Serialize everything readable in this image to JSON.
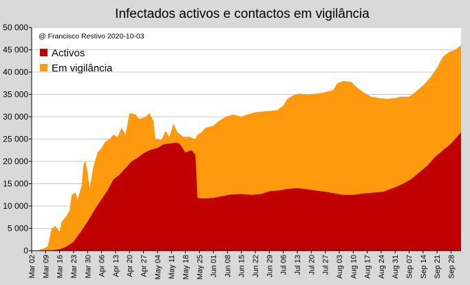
{
  "chart_data": {
    "type": "area",
    "stacked": true,
    "title": "Infectados activos e contactos em vigilância",
    "annotation": "@ Francisco Restivo 2020-10-03",
    "legend_position": "top-left",
    "grid": true,
    "ylim": [
      0,
      50000
    ],
    "yticks": [
      0,
      5000,
      10000,
      15000,
      20000,
      25000,
      30000,
      35000,
      40000,
      45000,
      50000
    ],
    "ytick_labels": [
      "0",
      "5 000",
      "10 000",
      "15 000",
      "20 000",
      "25 000",
      "30 000",
      "35 000",
      "40 000",
      "45 000",
      "50 000"
    ],
    "xlim": [
      "2020-03-02",
      "2020-10-03"
    ],
    "xticks": [
      "2020-03-02",
      "2020-03-09",
      "2020-03-16",
      "2020-03-23",
      "2020-03-30",
      "2020-04-06",
      "2020-04-13",
      "2020-04-20",
      "2020-04-27",
      "2020-05-04",
      "2020-05-11",
      "2020-05-18",
      "2020-05-25",
      "2020-06-01",
      "2020-06-08",
      "2020-06-15",
      "2020-06-22",
      "2020-06-29",
      "2020-07-06",
      "2020-07-13",
      "2020-07-20",
      "2020-07-27",
      "2020-08-03",
      "2020-08-10",
      "2020-08-17",
      "2020-08-24",
      "2020-08-31",
      "2020-09-07",
      "2020-09-14",
      "2020-09-21",
      "2020-09-28"
    ],
    "xtick_labels": [
      "Mar 02",
      "Mar 09",
      "Mar 16",
      "Mar 23",
      "Mar 30",
      "Apr 06",
      "Apr 13",
      "Apr 20",
      "Apr 27",
      "May 04",
      "May 11",
      "May 18",
      "May 25",
      "Jun 01",
      "Jun 08",
      "Jun 15",
      "Jun 22",
      "Jun 29",
      "Jul 06",
      "Jul 13",
      "Jul 20",
      "Jul 27",
      "Aug 03",
      "Aug 10",
      "Aug 17",
      "Aug 24",
      "Aug 31",
      "Sep 07",
      "Sep 14",
      "Sep 21",
      "Sep 28"
    ],
    "series": [
      {
        "name": "Activos",
        "color": "#c00000",
        "points": [
          [
            "2020-03-05",
            0
          ],
          [
            "2020-03-09",
            30
          ],
          [
            "2020-03-12",
            80
          ],
          [
            "2020-03-16",
            300
          ],
          [
            "2020-03-19",
            800
          ],
          [
            "2020-03-23",
            2000
          ],
          [
            "2020-03-27",
            4500
          ],
          [
            "2020-03-30",
            6500
          ],
          [
            "2020-04-03",
            9500
          ],
          [
            "2020-04-06",
            11500
          ],
          [
            "2020-04-09",
            13500
          ],
          [
            "2020-04-12",
            16000
          ],
          [
            "2020-04-15",
            17000
          ],
          [
            "2020-04-18",
            18500
          ],
          [
            "2020-04-21",
            20000
          ],
          [
            "2020-04-24",
            20800
          ],
          [
            "2020-04-27",
            21800
          ],
          [
            "2020-04-30",
            22500
          ],
          [
            "2020-05-04",
            23000
          ],
          [
            "2020-05-07",
            23800
          ],
          [
            "2020-05-10",
            24000
          ],
          [
            "2020-05-13",
            24200
          ],
          [
            "2020-05-15",
            24000
          ],
          [
            "2020-05-18",
            22000
          ],
          [
            "2020-05-21",
            22500
          ],
          [
            "2020-05-23",
            21500
          ],
          [
            "2020-05-24",
            11800
          ],
          [
            "2020-05-27",
            11700
          ],
          [
            "2020-06-01",
            11800
          ],
          [
            "2020-06-05",
            12200
          ],
          [
            "2020-06-10",
            12600
          ],
          [
            "2020-06-15",
            12700
          ],
          [
            "2020-06-20",
            12500
          ],
          [
            "2020-06-25",
            12700
          ],
          [
            "2020-06-29",
            13300
          ],
          [
            "2020-07-04",
            13500
          ],
          [
            "2020-07-08",
            13800
          ],
          [
            "2020-07-13",
            14000
          ],
          [
            "2020-07-17",
            13800
          ],
          [
            "2020-07-22",
            13500
          ],
          [
            "2020-07-27",
            13200
          ],
          [
            "2020-08-01",
            12800
          ],
          [
            "2020-08-05",
            12500
          ],
          [
            "2020-08-10",
            12500
          ],
          [
            "2020-08-15",
            12800
          ],
          [
            "2020-08-20",
            13000
          ],
          [
            "2020-08-25",
            13200
          ],
          [
            "2020-08-31",
            14200
          ],
          [
            "2020-09-04",
            15000
          ],
          [
            "2020-09-08",
            16000
          ],
          [
            "2020-09-12",
            17500
          ],
          [
            "2020-09-16",
            19000
          ],
          [
            "2020-09-20",
            21000
          ],
          [
            "2020-09-24",
            22500
          ],
          [
            "2020-09-28",
            24000
          ],
          [
            "2020-10-01",
            25500
          ],
          [
            "2020-10-03",
            26500
          ]
        ]
      },
      {
        "name": "Em vigilância",
        "color": "#ff9a0e",
        "points": [
          [
            "2020-03-05",
            0
          ],
          [
            "2020-03-08",
            500
          ],
          [
            "2020-03-10",
            900
          ],
          [
            "2020-03-12",
            5000
          ],
          [
            "2020-03-14",
            5500
          ],
          [
            "2020-03-16",
            4200
          ],
          [
            "2020-03-17",
            6500
          ],
          [
            "2020-03-19",
            7500
          ],
          [
            "2020-03-21",
            9000
          ],
          [
            "2020-03-22",
            12500
          ],
          [
            "2020-03-24",
            13000
          ],
          [
            "2020-03-25",
            11500
          ],
          [
            "2020-03-27",
            14500
          ],
          [
            "2020-03-28",
            19500
          ],
          [
            "2020-03-29",
            20000
          ],
          [
            "2020-03-30",
            17500
          ],
          [
            "2020-03-31",
            14000
          ],
          [
            "2020-04-02",
            19000
          ],
          [
            "2020-04-04",
            22000
          ],
          [
            "2020-04-06",
            23000
          ],
          [
            "2020-04-08",
            24500
          ],
          [
            "2020-04-10",
            25000
          ],
          [
            "2020-04-12",
            26000
          ],
          [
            "2020-04-14",
            25500
          ],
          [
            "2020-04-16",
            27500
          ],
          [
            "2020-04-18",
            26000
          ],
          [
            "2020-04-20",
            30800
          ],
          [
            "2020-04-23",
            30500
          ],
          [
            "2020-04-25",
            29500
          ],
          [
            "2020-04-28",
            30000
          ],
          [
            "2020-04-30",
            30800
          ],
          [
            "2020-05-02",
            29000
          ],
          [
            "2020-05-03",
            25000
          ],
          [
            "2020-05-06",
            24800
          ],
          [
            "2020-05-08",
            26800
          ],
          [
            "2020-05-10",
            25500
          ],
          [
            "2020-05-12",
            28500
          ],
          [
            "2020-05-14",
            26500
          ],
          [
            "2020-05-17",
            25500
          ],
          [
            "2020-05-20",
            25500
          ],
          [
            "2020-05-23",
            25000
          ],
          [
            "2020-05-24",
            26000
          ],
          [
            "2020-05-26",
            26500
          ],
          [
            "2020-05-28",
            27500
          ],
          [
            "2020-06-01",
            28000
          ],
          [
            "2020-06-03",
            28800
          ],
          [
            "2020-06-07",
            30000
          ],
          [
            "2020-06-11",
            30500
          ],
          [
            "2020-06-15",
            30000
          ],
          [
            "2020-06-18",
            30500
          ],
          [
            "2020-06-22",
            31000
          ],
          [
            "2020-06-26",
            31200
          ],
          [
            "2020-06-29",
            31300
          ],
          [
            "2020-07-03",
            31500
          ],
          [
            "2020-07-06",
            32500
          ],
          [
            "2020-07-08",
            34000
          ],
          [
            "2020-07-11",
            34800
          ],
          [
            "2020-07-14",
            35200
          ],
          [
            "2020-07-18",
            35000
          ],
          [
            "2020-07-23",
            35200
          ],
          [
            "2020-07-27",
            35500
          ],
          [
            "2020-07-31",
            36000
          ],
          [
            "2020-08-02",
            37500
          ],
          [
            "2020-08-05",
            38000
          ],
          [
            "2020-08-09",
            37800
          ],
          [
            "2020-08-12",
            36500
          ],
          [
            "2020-08-15",
            35500
          ],
          [
            "2020-08-19",
            34500
          ],
          [
            "2020-08-23",
            34200
          ],
          [
            "2020-08-27",
            34000
          ],
          [
            "2020-08-31",
            34200
          ],
          [
            "2020-09-03",
            34500
          ],
          [
            "2020-09-07",
            34500
          ],
          [
            "2020-09-10",
            35500
          ],
          [
            "2020-09-14",
            37000
          ],
          [
            "2020-09-18",
            39000
          ],
          [
            "2020-09-21",
            41000
          ],
          [
            "2020-09-24",
            43500
          ],
          [
            "2020-09-27",
            44500
          ],
          [
            "2020-09-30",
            45000
          ],
          [
            "2020-10-03",
            46000
          ]
        ]
      }
    ]
  }
}
